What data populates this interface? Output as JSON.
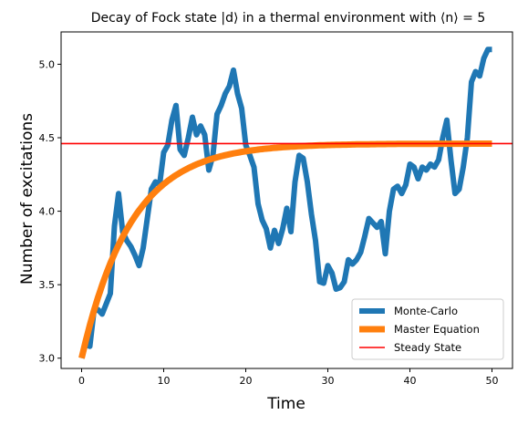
{
  "chart_data": {
    "type": "line",
    "title": "Decay of Fock state |d⟩ in a thermal environment with ⟨n⟩ = 5",
    "xlabel": "Time",
    "ylabel": "Number of excitations",
    "xlim": [
      -2.5,
      52.5
    ],
    "ylim": [
      2.93,
      5.22
    ],
    "xticks": [
      0,
      10,
      20,
      30,
      40,
      50
    ],
    "yticks": [
      3.0,
      3.5,
      4.0,
      4.5,
      5.0
    ],
    "xtick_labels": [
      "0",
      "10",
      "20",
      "30",
      "40",
      "50"
    ],
    "ytick_labels": [
      "3.0",
      "3.5",
      "4.0",
      "4.5",
      "5.0"
    ],
    "legend": {
      "position": "lower right"
    },
    "series": [
      {
        "name": "Monte-Carlo",
        "color": "#1f77b4",
        "kind": "line",
        "x": [
          0,
          0.5,
          1,
          1.5,
          2,
          2.5,
          3,
          3.5,
          4,
          4.5,
          5,
          5.5,
          6,
          6.5,
          7,
          7.5,
          8,
          8.5,
          9,
          9.5,
          10,
          10.5,
          11,
          11.5,
          12,
          12.5,
          13,
          13.5,
          14,
          14.5,
          15,
          15.5,
          16,
          16.5,
          17,
          17.5,
          18,
          18.5,
          19,
          19.5,
          20,
          20.5,
          21,
          21.5,
          22,
          22.5,
          23,
          23.5,
          24,
          24.5,
          25,
          25.5,
          26,
          26.5,
          27,
          27.5,
          28,
          28.5,
          29,
          29.5,
          30,
          30.5,
          31,
          31.5,
          32,
          32.5,
          33,
          33.5,
          34,
          34.5,
          35,
          35.5,
          36,
          36.5,
          37,
          37.5,
          38,
          38.5,
          39,
          39.5,
          40,
          40.5,
          41,
          41.5,
          42,
          42.5,
          43,
          43.5,
          44,
          44.5,
          45,
          45.5,
          46,
          46.5,
          47,
          47.5,
          48,
          48.5,
          49,
          49.5,
          50
        ],
        "y": [
          3.0,
          3.1,
          3.08,
          3.32,
          3.33,
          3.3,
          3.37,
          3.44,
          3.9,
          4.12,
          3.86,
          3.8,
          3.76,
          3.7,
          3.63,
          3.75,
          3.95,
          4.15,
          4.2,
          4.18,
          4.4,
          4.45,
          4.62,
          4.72,
          4.42,
          4.38,
          4.5,
          4.64,
          4.52,
          4.58,
          4.52,
          4.28,
          4.38,
          4.66,
          4.72,
          4.8,
          4.85,
          4.96,
          4.8,
          4.7,
          4.45,
          4.38,
          4.3,
          4.05,
          3.94,
          3.88,
          3.75,
          3.87,
          3.78,
          3.88,
          4.02,
          3.86,
          4.2,
          4.38,
          4.36,
          4.2,
          3.98,
          3.8,
          3.52,
          3.51,
          3.63,
          3.58,
          3.47,
          3.48,
          3.52,
          3.67,
          3.64,
          3.67,
          3.72,
          3.83,
          3.95,
          3.92,
          3.89,
          3.93,
          3.71,
          4.0,
          4.15,
          4.17,
          4.12,
          4.18,
          4.32,
          4.3,
          4.22,
          4.3,
          4.28,
          4.32,
          4.3,
          4.35,
          4.5,
          4.62,
          4.35,
          4.12,
          4.15,
          4.3,
          4.5,
          4.88,
          4.95,
          4.92,
          5.04,
          5.1,
          5.1
        ]
      },
      {
        "name": "Master Equation",
        "color": "#ff7f0e",
        "kind": "exponential",
        "x0": 0,
        "x1": 50,
        "y_start": 3.0,
        "y_end": 4.46,
        "tau": 6.0
      },
      {
        "name": "Steady State",
        "color": "#ff0000",
        "kind": "hline",
        "y": 4.46
      }
    ]
  }
}
